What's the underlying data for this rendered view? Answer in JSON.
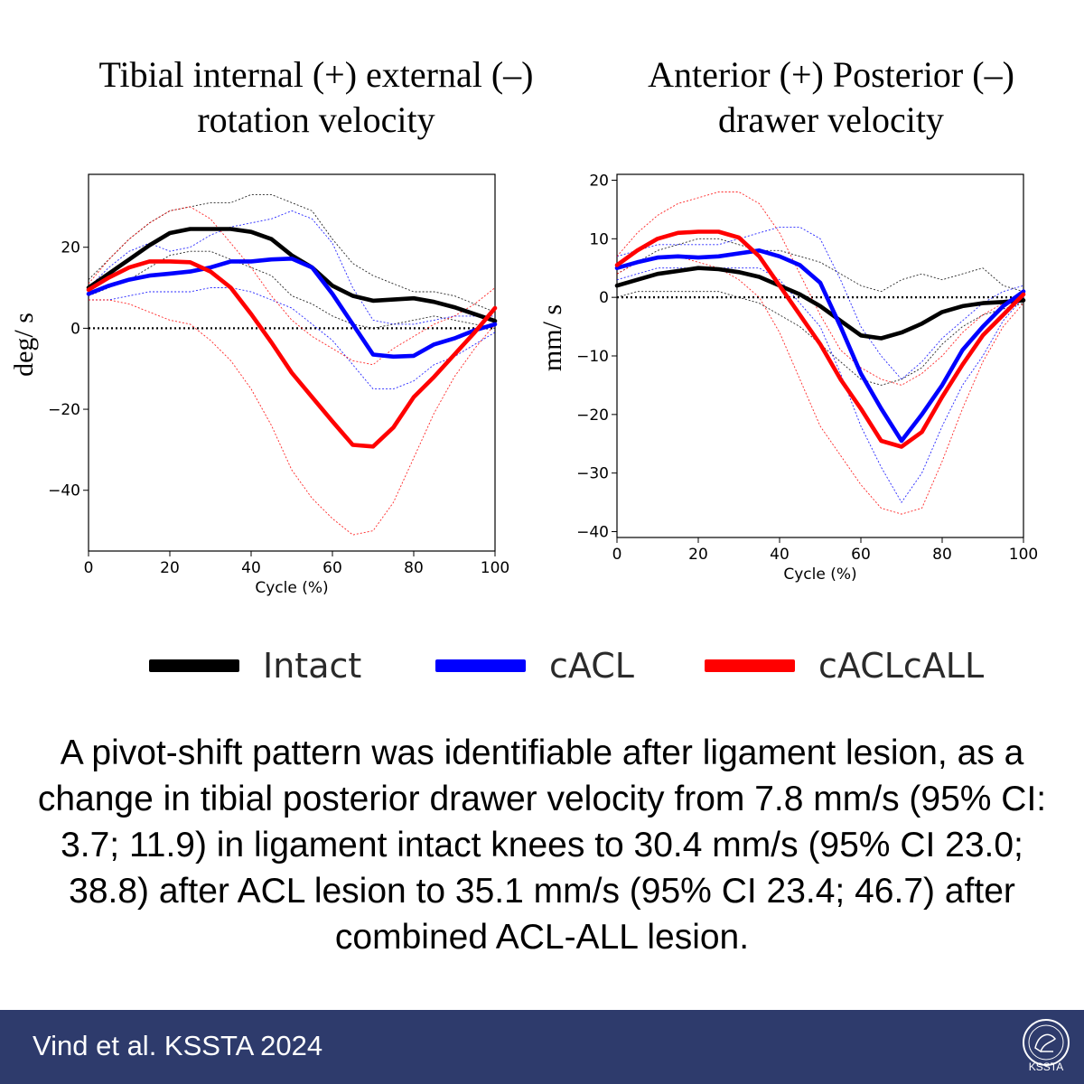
{
  "figure": {
    "caption": "A pivot-shift pattern was identifiable after ligament lesion, as a change in tibial posterior drawer velocity from 7.8 mm/s (95% CI: 3.7; 11.9) in ligament intact knees to 30.4 mm/s (95% CI 23.0; 38.8) after ACL lesion to 35.1 mm/s (95% CI 23.4; 46.7) after combined ACL-ALL lesion.",
    "citation": "Vind et al. KSSTA 2024",
    "logo_text": "KSSTA"
  },
  "legend": [
    {
      "name": "Intact",
      "color": "#000000"
    },
    {
      "name": "cACL",
      "color": "#0000ff"
    },
    {
      "name": "cACLcALL",
      "color": "#ff0000"
    }
  ],
  "chart_data": [
    {
      "type": "line",
      "title_lines": [
        "Tibial internal (+) external (–)",
        "rotation velocity"
      ],
      "xlabel": "Cycle (%)",
      "ylabel": "deg/ s",
      "xlim": [
        0,
        100
      ],
      "ylim": [
        -55,
        38
      ],
      "xticks": [
        0,
        20,
        40,
        60,
        80,
        100
      ],
      "yticks": [
        -40,
        -20,
        0,
        20
      ],
      "zero_line": true,
      "grid": false,
      "x": [
        0,
        5,
        10,
        15,
        20,
        25,
        30,
        35,
        40,
        45,
        50,
        55,
        60,
        65,
        70,
        75,
        80,
        85,
        90,
        95,
        100
      ],
      "series": [
        {
          "name": "Intact",
          "color": "#000000",
          "values": [
            10,
            13.5,
            17,
            20.5,
            23.5,
            24.5,
            24.5,
            24.5,
            23.8,
            22,
            18,
            15,
            10.5,
            8,
            6.8,
            7.1,
            7.4,
            6.5,
            5.2,
            3.5,
            1.8
          ]
        },
        {
          "name": "cACL",
          "color": "#0000ff",
          "values": [
            8.5,
            10.5,
            12,
            13,
            13.5,
            14,
            15,
            16.5,
            16.5,
            17,
            17.2,
            15,
            8.5,
            1,
            -6.5,
            -7,
            -6.8,
            -4,
            -2.5,
            -0.5,
            1
          ]
        },
        {
          "name": "cACLcALL",
          "color": "#ff0000",
          "values": [
            9.5,
            12.5,
            15,
            16.5,
            16.5,
            16.3,
            14,
            10,
            3.5,
            -3.5,
            -11,
            -17,
            -23,
            -28.8,
            -29.2,
            -24.5,
            -17,
            -12,
            -6.5,
            -1,
            5
          ]
        }
      ],
      "bounds": [
        {
          "series": "Intact",
          "upper": [
            12,
            17,
            22,
            26,
            29,
            30,
            31,
            31,
            33,
            33,
            31,
            29,
            22,
            16,
            13,
            11,
            9,
            9,
            8,
            6,
            4
          ],
          "lower": [
            8,
            10,
            12,
            15,
            18,
            19,
            19,
            17,
            15,
            13,
            8,
            6,
            3,
            1,
            0,
            1,
            2,
            3,
            2,
            1,
            0
          ]
        },
        {
          "series": "cACL",
          "upper": [
            10,
            15,
            19,
            21,
            19,
            20,
            23,
            25,
            26,
            27,
            29,
            27,
            21,
            10,
            2,
            1,
            1,
            2,
            3,
            3,
            3
          ]
        },
        {
          "series": "cACL",
          "lower": [
            7,
            7,
            8,
            9,
            9,
            9,
            10,
            10,
            9,
            7,
            5,
            1,
            -3,
            -9,
            -15,
            -15,
            -13,
            -9,
            -7,
            -4,
            -1
          ]
        },
        {
          "series": "cACLcALL",
          "upper": [
            11,
            17,
            22,
            26,
            29,
            30,
            27,
            21,
            15,
            8,
            2,
            -2,
            -5,
            -8,
            -9,
            -5,
            -2,
            1,
            3,
            6,
            10
          ]
        },
        {
          "series": "cACLcALL",
          "lower": [
            7,
            7,
            6,
            4,
            2,
            1,
            -3,
            -8,
            -15,
            -24,
            -35,
            -42,
            -47,
            -51,
            -50,
            -43,
            -32,
            -21,
            -12,
            -5,
            1
          ]
        }
      ]
    },
    {
      "type": "line",
      "title_lines": [
        "Anterior (+) Posterior (–)",
        "drawer velocity"
      ],
      "xlabel": "Cycle (%)",
      "ylabel": "mm/ s",
      "xlim": [
        0,
        100
      ],
      "ylim": [
        -41,
        21
      ],
      "xticks": [
        0,
        20,
        40,
        60,
        80,
        100
      ],
      "yticks": [
        -40,
        -30,
        -20,
        -10,
        0,
        10,
        20
      ],
      "zero_line": true,
      "grid": false,
      "x": [
        0,
        5,
        10,
        15,
        20,
        25,
        30,
        35,
        40,
        45,
        50,
        55,
        60,
        65,
        70,
        75,
        80,
        85,
        90,
        95,
        100
      ],
      "series": [
        {
          "name": "Intact",
          "color": "#000000",
          "values": [
            2,
            3,
            4,
            4.5,
            5,
            4.8,
            4.3,
            3.5,
            2,
            0.5,
            -1.5,
            -4,
            -6.5,
            -7,
            -6,
            -4.5,
            -2.5,
            -1.5,
            -1,
            -0.8,
            -0.5
          ]
        },
        {
          "name": "cACL",
          "color": "#0000ff",
          "values": [
            5,
            6,
            6.8,
            7,
            6.8,
            7,
            7.5,
            8,
            7,
            5.5,
            2.5,
            -5,
            -13,
            -19,
            -24.5,
            -20,
            -15,
            -9,
            -5,
            -1.5,
            1
          ]
        },
        {
          "name": "cACLcALL",
          "color": "#ff0000",
          "values": [
            5.5,
            8,
            10,
            11,
            11.2,
            11.2,
            10.2,
            7,
            2,
            -3,
            -8,
            -14,
            -19,
            -24.5,
            -25.5,
            -23,
            -17,
            -11.5,
            -6.5,
            -3,
            0.5
          ]
        }
      ],
      "bounds": [
        {
          "series": "Intact",
          "upper": [
            4,
            6,
            8,
            9,
            10,
            10,
            9,
            8,
            8,
            7,
            6,
            4,
            2,
            1,
            3,
            4,
            3,
            4,
            5,
            2,
            1
          ]
        },
        {
          "series": "Intact",
          "lower": [
            0,
            1,
            1,
            1,
            1,
            1,
            0,
            -1,
            -3,
            -5,
            -8,
            -11,
            -14,
            -15,
            -14,
            -12,
            -8,
            -5,
            -3,
            -2,
            -1
          ]
        },
        {
          "series": "cACL",
          "upper": [
            7,
            8,
            9,
            9,
            9,
            9,
            10,
            11,
            12,
            12,
            10,
            3,
            -5,
            -10,
            -14,
            -11,
            -7,
            -4,
            -1,
            1,
            2
          ]
        },
        {
          "series": "cACL",
          "lower": [
            3,
            4,
            5,
            5,
            5,
            5,
            5,
            5,
            3,
            -1,
            -5,
            -13,
            -22,
            -29,
            -35,
            -30,
            -22,
            -15,
            -10,
            -4,
            0
          ]
        },
        {
          "series": "cACLcALL",
          "upper": [
            7,
            11,
            14,
            16,
            17,
            18,
            18,
            16,
            11,
            4,
            -3,
            -9,
            -12,
            -14,
            -15,
            -13,
            -10,
            -6,
            -3,
            -1,
            0
          ]
        },
        {
          "series": "cACLcALL",
          "lower": [
            4,
            6,
            7,
            7,
            6,
            5,
            3,
            0,
            -6,
            -14,
            -22,
            -27,
            -32,
            -36,
            -37,
            -36,
            -28,
            -19,
            -11,
            -5,
            -1
          ]
        }
      ]
    }
  ]
}
